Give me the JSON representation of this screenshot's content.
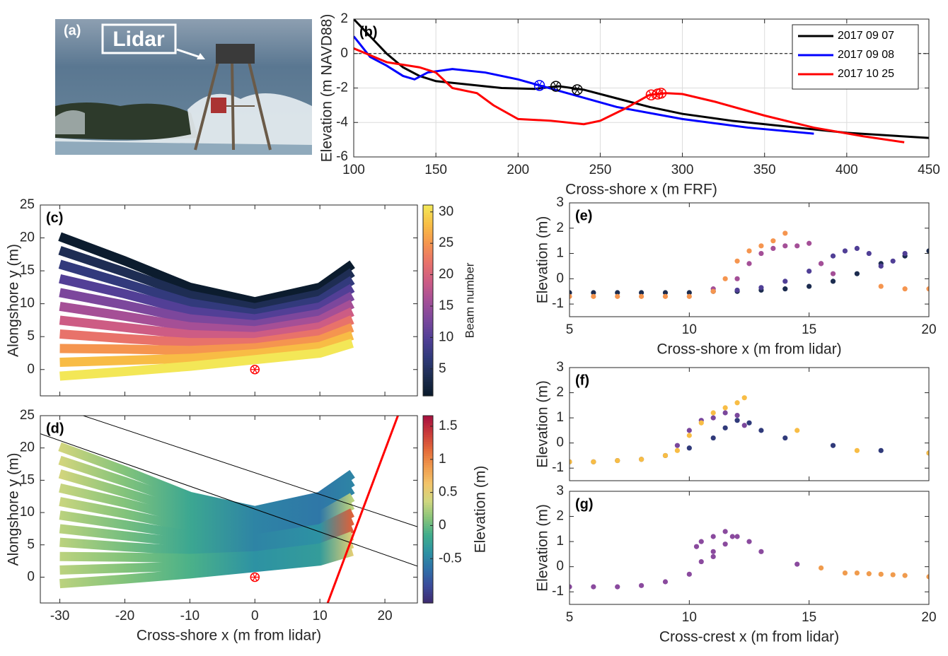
{
  "photo": {
    "label": "(a)",
    "annotation": "Lidar"
  },
  "chart_data": [
    {
      "type": "line",
      "label": "(b)",
      "xlabel": "Cross-shore x (m FRF)",
      "ylabel": "Elevation (m NAVD88)",
      "xlim": [
        100,
        450
      ],
      "ylim": [
        -6,
        2
      ],
      "xticks": [
        100,
        150,
        200,
        250,
        300,
        350,
        400,
        450
      ],
      "yticks": [
        -6,
        -4,
        -2,
        0,
        2
      ],
      "grid": true,
      "reference_line": 0,
      "legend": "upper right",
      "series": [
        {
          "name": "2017 09 07",
          "color": "#000000",
          "x": [
            100,
            110,
            120,
            130,
            140,
            150,
            170,
            190,
            210,
            225,
            240,
            260,
            280,
            300,
            330,
            360,
            400,
            450
          ],
          "values": [
            2,
            1,
            0,
            -0.8,
            -1.3,
            -1.6,
            -1.8,
            -2,
            -2.05,
            -1.9,
            -2.1,
            -2.6,
            -3.1,
            -3.5,
            -3.9,
            -4.2,
            -4.6,
            -4.9
          ],
          "markers_x": [
            223,
            236
          ],
          "markers_y": [
            -1.9,
            -2.1
          ]
        },
        {
          "name": "2017 09 08",
          "color": "#0000ff",
          "x": [
            100,
            110,
            120,
            130,
            137,
            145,
            160,
            180,
            200,
            215,
            230,
            260,
            300,
            340,
            380
          ],
          "values": [
            1,
            -0.2,
            -0.7,
            -1.3,
            -1.5,
            -1.1,
            -0.9,
            -1.1,
            -1.5,
            -1.9,
            -2.3,
            -3.1,
            -3.8,
            -4.3,
            -4.65
          ],
          "markers_x": [
            213
          ],
          "markers_y": [
            -1.85
          ]
        },
        {
          "name": "2017 10 25",
          "color": "#ff0000",
          "x": [
            100,
            120,
            140,
            150,
            160,
            175,
            185,
            200,
            220,
            240,
            250,
            265,
            280,
            290,
            300,
            320,
            350,
            380,
            410,
            435
          ],
          "values": [
            0.3,
            -0.5,
            -0.8,
            -1.1,
            -2,
            -2.3,
            -3,
            -3.8,
            -3.9,
            -4.1,
            -3.9,
            -3.2,
            -2.4,
            -2.3,
            -2.35,
            -2.8,
            -3.6,
            -4.3,
            -4.8,
            -5.15
          ],
          "markers_x": [
            281,
            285,
            287
          ],
          "markers_y": [
            -2.4,
            -2.35,
            -2.3
          ]
        }
      ]
    },
    {
      "type": "beams",
      "label": "(c)",
      "ylabel": "Alongshore y (m)",
      "xlim": [
        -33,
        25
      ],
      "ylim": [
        -4,
        25
      ],
      "xticks": [
        -30,
        -20,
        -10,
        0,
        10,
        20
      ],
      "yticks": [
        0,
        5,
        10,
        15,
        20,
        25
      ],
      "xtick_labels": false,
      "x": [
        -30,
        -20,
        -10,
        0,
        10,
        15
      ],
      "series": [
        {
          "beam": 1,
          "values": [
            20.2,
            16.5,
            12.5,
            10.3,
            12.5,
            16
          ]
        },
        {
          "beam": 4,
          "values": [
            18.1,
            14.8,
            11.3,
            9.4,
            11.5,
            14.8
          ]
        },
        {
          "beam": 7,
          "values": [
            16.0,
            13.1,
            10.1,
            8.5,
            10.5,
            13.6
          ]
        },
        {
          "beam": 10,
          "values": [
            13.8,
            11.5,
            8.9,
            7.7,
            9.5,
            12.4
          ]
        },
        {
          "beam": 13,
          "values": [
            11.7,
            9.8,
            7.7,
            6.8,
            8.5,
            11.2
          ]
        },
        {
          "beam": 16,
          "values": [
            9.6,
            8.1,
            6.5,
            5.9,
            7.5,
            10
          ]
        },
        {
          "beam": 19,
          "values": [
            7.5,
            6.4,
            5.3,
            5.0,
            6.5,
            8.8
          ]
        },
        {
          "beam": 22,
          "values": [
            5.4,
            4.7,
            4.1,
            4.1,
            5.5,
            7.6
          ]
        },
        {
          "beam": 25,
          "values": [
            3.2,
            3.1,
            2.9,
            3.3,
            4.5,
            6.4
          ]
        },
        {
          "beam": 28,
          "values": [
            1.1,
            1.4,
            1.7,
            2.4,
            3.5,
            5.2
          ]
        },
        {
          "beam": 31,
          "values": [
            -1,
            -0.3,
            0.5,
            1.5,
            2.5,
            4
          ]
        }
      ],
      "lidar": {
        "x": 0,
        "y": 0
      },
      "colorbar": {
        "label": "Beam number",
        "clim": [
          0.7,
          31.1
        ],
        "ticks": [
          5,
          10,
          15,
          20,
          25,
          30
        ],
        "colormap": [
          "#0a1a2a",
          "#1c2c4f",
          "#303a7a",
          "#503f96",
          "#7a479c",
          "#a44f97",
          "#cc5c85",
          "#e8726a",
          "#f5954f",
          "#f8bd45",
          "#f3e858"
        ]
      }
    },
    {
      "type": "beams",
      "label": "(d)",
      "xlabel": "Cross-shore x (m from lidar)",
      "ylabel": "Alongshore y (m)",
      "xlim": [
        -33,
        25
      ],
      "ylim": [
        -4,
        25
      ],
      "xticks": [
        -30,
        -20,
        -10,
        0,
        10,
        20
      ],
      "yticks": [
        0,
        5,
        10,
        15,
        20,
        25
      ],
      "x": [
        -30,
        -20,
        -10,
        0,
        10,
        15
      ],
      "series": [
        {
          "values": [
            20.2,
            16.5,
            12.5,
            10.3,
            12.5,
            16
          ],
          "elevation": [
            0.4,
            0.1,
            -0.2,
            -0.5,
            -0.6,
            -0.5
          ]
        },
        {
          "values": [
            18.1,
            14.8,
            11.3,
            9.4,
            11.5,
            14.8
          ],
          "elevation": [
            0.4,
            0.1,
            -0.2,
            -0.5,
            -0.6,
            -0.5
          ]
        },
        {
          "values": [
            16.0,
            13.1,
            10.1,
            8.5,
            10.5,
            13.6
          ],
          "elevation": [
            0.4,
            0.1,
            -0.2,
            -0.5,
            -0.6,
            -0.5
          ]
        },
        {
          "values": [
            13.8,
            11.5,
            8.9,
            7.7,
            9.5,
            12.4
          ],
          "elevation": [
            0.35,
            0.1,
            -0.2,
            -0.5,
            -0.6,
            0.3
          ]
        },
        {
          "values": [
            11.7,
            9.8,
            7.7,
            6.8,
            8.5,
            11.2
          ],
          "elevation": [
            0.35,
            0.1,
            -0.2,
            -0.5,
            -0.6,
            0.3
          ]
        },
        {
          "values": [
            9.6,
            8.1,
            6.5,
            5.9,
            7.5,
            10
          ],
          "elevation": [
            0.3,
            0.05,
            -0.2,
            -0.5,
            -0.4,
            1.2
          ]
        },
        {
          "values": [
            7.5,
            6.4,
            5.3,
            5.0,
            6.5,
            8.8
          ],
          "elevation": [
            0.3,
            0.05,
            -0.2,
            -0.5,
            -0.4,
            1.2
          ]
        },
        {
          "values": [
            5.4,
            4.7,
            4.1,
            4.1,
            5.5,
            7.6
          ],
          "elevation": [
            0.3,
            0.05,
            -0.2,
            -0.5,
            -0.4,
            1.2
          ]
        },
        {
          "values": [
            3.2,
            3.1,
            2.9,
            3.3,
            4.5,
            6.4
          ],
          "elevation": [
            0.3,
            0.1,
            -0.1,
            -0.4,
            -0.3,
            0.5
          ]
        },
        {
          "values": [
            1.1,
            1.4,
            1.7,
            2.4,
            3.5,
            5.2
          ],
          "elevation": [
            0.3,
            0.1,
            -0.1,
            -0.4,
            -0.3,
            0.5
          ]
        },
        {
          "values": [
            -1,
            -0.3,
            0.5,
            1.5,
            2.5,
            4
          ],
          "elevation": [
            0.3,
            0.1,
            -0.1,
            -0.4,
            -0.3,
            0.5
          ]
        }
      ],
      "lidar": {
        "x": 0,
        "y": 0
      },
      "lines": [
        {
          "x": [
            -30,
            25
          ],
          "y": [
            26.2,
            7.8
          ],
          "color": "#000000"
        },
        {
          "x": [
            -33,
            25
          ],
          "y": [
            22.2,
            1.7
          ],
          "color": "#000000"
        },
        {
          "x": [
            11.2,
            22
          ],
          "y": [
            -4,
            25
          ],
          "color": "#ff0000"
        }
      ],
      "colorbar": {
        "label": "Elevation (m)",
        "clim": [
          -1.17,
          1.66
        ],
        "ticks": [
          -0.5,
          0,
          0.5,
          1,
          1.5
        ],
        "colormap": [
          "#3e2a6e",
          "#3b4a9a",
          "#2f6fa8",
          "#2d92a3",
          "#40ad8c",
          "#87c47a",
          "#d0d77f",
          "#f2c56a",
          "#f09b4d",
          "#e46b3a",
          "#c93a3a",
          "#a6103f"
        ]
      }
    },
    {
      "type": "scatter",
      "label": "(e)",
      "xlabel": "Cross-shore x (m from lidar)",
      "ylabel": "Elevation (m)",
      "xlim": [
        5,
        20
      ],
      "ylim": [
        -1.5,
        3
      ],
      "xticks": [
        5,
        10,
        15,
        20
      ],
      "yticks": [
        -1,
        0,
        1,
        2,
        3
      ],
      "series": [
        {
          "color": "#1c2c4f",
          "x": [
            5,
            6,
            7,
            8,
            9,
            10,
            11,
            12,
            13,
            14,
            15,
            16,
            17,
            18,
            19,
            20
          ],
          "values": [
            -0.55,
            -0.55,
            -0.55,
            -0.55,
            -0.55,
            -0.55,
            -0.5,
            -0.5,
            -0.45,
            -0.4,
            -0.3,
            -0.1,
            0.2,
            0.6,
            0.9,
            1.1
          ]
        },
        {
          "color": "#503f96",
          "x": [
            12,
            13,
            14,
            15,
            15.5,
            16,
            16.5,
            17,
            17.5,
            18,
            18.5,
            19
          ],
          "values": [
            -0.45,
            -0.35,
            -0.1,
            0.3,
            0.6,
            0.9,
            1.1,
            1.2,
            1.0,
            0.5,
            0.7,
            1.0
          ]
        },
        {
          "color": "#a44f97",
          "x": [
            11,
            12,
            12.5,
            13,
            13.5,
            14,
            14.5,
            15,
            15.5,
            16
          ],
          "values": [
            -0.4,
            0,
            0.6,
            1.0,
            1.2,
            1.3,
            1.3,
            1.4,
            0.6,
            0.2
          ]
        },
        {
          "color": "#f5954f",
          "x": [
            5,
            6,
            7,
            8,
            9,
            10,
            11,
            11.5,
            12,
            12.5,
            13,
            13.5,
            14,
            18,
            19,
            20
          ],
          "values": [
            -0.7,
            -0.7,
            -0.7,
            -0.7,
            -0.7,
            -0.7,
            -0.5,
            0,
            0.7,
            1.1,
            1.3,
            1.5,
            1.8,
            -0.3,
            -0.4,
            -0.4
          ]
        }
      ]
    },
    {
      "type": "scatter",
      "label": "(f)",
      "ylabel": "Elevation (m)",
      "xlim": [
        5,
        20
      ],
      "ylim": [
        -1.5,
        3
      ],
      "xticks": [
        5,
        10,
        15,
        20
      ],
      "yticks": [
        -1,
        0,
        1,
        2,
        3
      ],
      "xtick_labels": false,
      "series": [
        {
          "color": "#303a7a",
          "x": [
            5,
            6,
            7,
            8,
            9,
            10,
            11,
            11.5,
            12,
            12.5,
            13,
            14,
            16,
            18,
            20
          ],
          "values": [
            -0.75,
            -0.75,
            -0.7,
            -0.65,
            -0.5,
            -0.2,
            0.2,
            0.6,
            0.9,
            0.8,
            0.5,
            0.2,
            -0.1,
            -0.3,
            -0.4
          ]
        },
        {
          "color": "#7a479c",
          "x": [
            9.5,
            10,
            10.5,
            11,
            11.5,
            12,
            12.3
          ],
          "values": [
            -0.1,
            0.5,
            0.9,
            1.0,
            1.2,
            1.1,
            0.7
          ]
        },
        {
          "color": "#f8bd45",
          "x": [
            5,
            6,
            7,
            8,
            9,
            9.5,
            10,
            10.5,
            11,
            11.5,
            12,
            12.3,
            14.5,
            17,
            20
          ],
          "values": [
            -0.75,
            -0.75,
            -0.7,
            -0.65,
            -0.5,
            -0.3,
            0.3,
            0.8,
            1.2,
            1.4,
            1.6,
            1.8,
            0.5,
            -0.3,
            -0.4
          ]
        }
      ]
    },
    {
      "type": "scatter",
      "label": "(g)",
      "xlabel": "Cross-crest x (m from lidar)",
      "ylabel": "Elevation (m)",
      "xlim": [
        5,
        20
      ],
      "ylim": [
        -1.5,
        3
      ],
      "xticks": [
        5,
        10,
        15,
        20
      ],
      "yticks": [
        -1,
        0,
        1,
        2,
        3
      ],
      "series": [
        {
          "color": "#8a4a9e",
          "x": [
            5,
            6,
            7,
            8,
            9,
            10,
            10.5,
            11,
            11.5,
            11.8,
            11.5,
            11,
            10.5,
            10.3,
            11,
            12,
            12.5,
            13,
            14.5
          ],
          "values": [
            -0.8,
            -0.8,
            -0.8,
            -0.75,
            -0.6,
            -0.3,
            0.2,
            0.6,
            0.9,
            1.2,
            1.4,
            1.2,
            1.0,
            0.8,
            0.4,
            1.2,
            1.0,
            0.6,
            0.1
          ]
        },
        {
          "color": "#f09b4d",
          "x": [
            15.5,
            16.5,
            17,
            17.5,
            18,
            18.5,
            19,
            20
          ],
          "values": [
            -0.05,
            -0.25,
            -0.25,
            -0.28,
            -0.3,
            -0.32,
            -0.35,
            -0.4
          ]
        }
      ]
    }
  ]
}
